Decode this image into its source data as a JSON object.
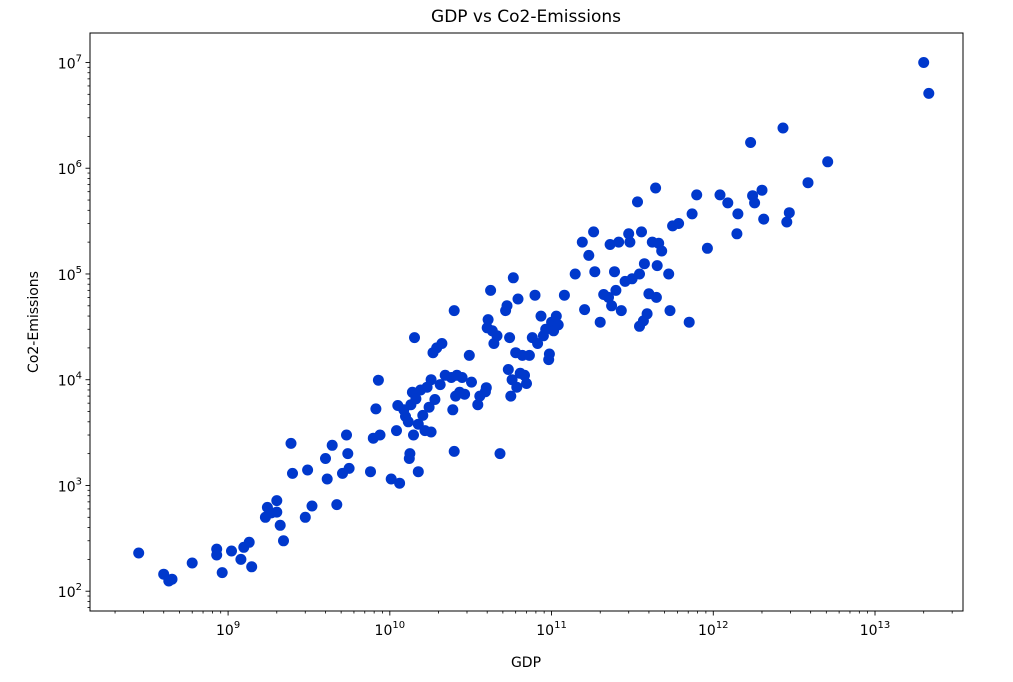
{
  "chart_data": {
    "type": "scatter",
    "title": "GDP vs Co2-Emissions",
    "xlabel": "GDP",
    "ylabel": "Co2-Emissions",
    "x_scale": "log",
    "y_scale": "log",
    "xlim": [
      140000000.0,
      35000000000000.0
    ],
    "ylim": [
      65,
      19000000.0
    ],
    "grid": false,
    "point_color": "#0038cc",
    "x_ticks": [
      {
        "value": 1000000000.0,
        "base": "10",
        "exp": "9"
      },
      {
        "value": 10000000000.0,
        "base": "10",
        "exp": "10"
      },
      {
        "value": 100000000000.0,
        "base": "10",
        "exp": "11"
      },
      {
        "value": 1000000000000.0,
        "base": "10",
        "exp": "12"
      },
      {
        "value": 10000000000000.0,
        "base": "10",
        "exp": "13"
      }
    ],
    "y_ticks": [
      {
        "value": 100.0,
        "base": "10",
        "exp": "2"
      },
      {
        "value": 1000.0,
        "base": "10",
        "exp": "3"
      },
      {
        "value": 10000.0,
        "base": "10",
        "exp": "4"
      },
      {
        "value": 100000.0,
        "base": "10",
        "exp": "5"
      },
      {
        "value": 1000000.0,
        "base": "10",
        "exp": "6"
      },
      {
        "value": 10000000.0,
        "base": "10",
        "exp": "7"
      }
    ],
    "points": [
      [
        280000000.0,
        230
      ],
      [
        400000000.0,
        145
      ],
      [
        430000000.0,
        125
      ],
      [
        450000000.0,
        130
      ],
      [
        600000000.0,
        185
      ],
      [
        850000000.0,
        250
      ],
      [
        850000000.0,
        220
      ],
      [
        920000000.0,
        150
      ],
      [
        1050000000.0,
        240
      ],
      [
        1200000000.0,
        200
      ],
      [
        1250000000.0,
        260
      ],
      [
        1350000000.0,
        290
      ],
      [
        1400000000.0,
        170
      ],
      [
        1700000000.0,
        500
      ],
      [
        1750000000.0,
        620
      ],
      [
        1850000000.0,
        550
      ],
      [
        2000000000.0,
        560
      ],
      [
        2000000000.0,
        720
      ],
      [
        2100000000.0,
        420
      ],
      [
        2200000000.0,
        300
      ],
      [
        2450000000.0,
        2500
      ],
      [
        2500000000.0,
        1300
      ],
      [
        3000000000.0,
        500
      ],
      [
        3100000000.0,
        1400
      ],
      [
        3300000000.0,
        640
      ],
      [
        4000000000.0,
        1800
      ],
      [
        4100000000.0,
        1150
      ],
      [
        4400000000.0,
        2400
      ],
      [
        4700000000.0,
        660
      ],
      [
        5100000000.0,
        1300
      ],
      [
        5400000000.0,
        3000
      ],
      [
        5500000000.0,
        2000
      ],
      [
        5600000000.0,
        1450
      ],
      [
        7600000000.0,
        1350
      ],
      [
        7900000000.0,
        2800
      ],
      [
        8200000000.0,
        5300
      ],
      [
        8500000000.0,
        9900
      ],
      [
        8700000000.0,
        3000
      ],
      [
        10200000000.0,
        1150
      ],
      [
        11000000000.0,
        3300
      ],
      [
        11200000000.0,
        5700
      ],
      [
        11500000000.0,
        1050
      ],
      [
        12200000000.0,
        5200
      ],
      [
        12500000000.0,
        4500
      ],
      [
        13000000000.0,
        4000
      ],
      [
        13200000000.0,
        1800
      ],
      [
        13300000000.0,
        2000
      ],
      [
        13500000000.0,
        5800
      ],
      [
        13800000000.0,
        7600
      ],
      [
        14000000000.0,
        3000
      ],
      [
        14200000000.0,
        25000
      ],
      [
        14500000000.0,
        6600
      ],
      [
        15000000000.0,
        3800
      ],
      [
        15000000000.0,
        1350
      ],
      [
        15500000000.0,
        8000
      ],
      [
        16000000000.0,
        4600
      ],
      [
        16500000000.0,
        3300
      ],
      [
        17000000000.0,
        8500
      ],
      [
        17500000000.0,
        5500
      ],
      [
        18000000000.0,
        3200
      ],
      [
        18000000000.0,
        10000
      ],
      [
        18500000000.0,
        18000
      ],
      [
        19000000000.0,
        6500
      ],
      [
        19500000000.0,
        20000
      ],
      [
        20500000000.0,
        9000
      ],
      [
        21000000000.0,
        22000
      ],
      [
        22000000000.0,
        11000
      ],
      [
        24000000000.0,
        10500
      ],
      [
        24500000000.0,
        5200
      ],
      [
        25000000000.0,
        45000
      ],
      [
        25000000000.0,
        2100
      ],
      [
        25500000000.0,
        7000
      ],
      [
        26000000000.0,
        11000
      ],
      [
        27000000000.0,
        7600
      ],
      [
        28000000000.0,
        10500
      ],
      [
        29000000000.0,
        7300
      ],
      [
        31000000000.0,
        17000
      ],
      [
        32000000000.0,
        9500
      ],
      [
        35000000000.0,
        5800
      ],
      [
        36000000000.0,
        7000
      ],
      [
        39000000000.0,
        7700
      ],
      [
        39500000000.0,
        8400
      ],
      [
        40000000000.0,
        31000
      ],
      [
        40500000000.0,
        37000
      ],
      [
        42000000000.0,
        70000
      ],
      [
        43000000000.0,
        29000
      ],
      [
        44000000000.0,
        22000
      ],
      [
        46000000000.0,
        26000
      ],
      [
        48000000000.0,
        2000
      ],
      [
        52000000000.0,
        45000
      ],
      [
        53000000000.0,
        50000
      ],
      [
        54000000000.0,
        12500
      ],
      [
        55000000000.0,
        25000
      ],
      [
        56000000000.0,
        7000
      ],
      [
        57000000000.0,
        10000
      ],
      [
        58000000000.0,
        92000
      ],
      [
        60000000000.0,
        18000
      ],
      [
        61000000000.0,
        8500
      ],
      [
        62000000000.0,
        58000
      ],
      [
        64000000000.0,
        11500
      ],
      [
        66000000000.0,
        17000
      ],
      [
        68000000000.0,
        11000
      ],
      [
        70000000000.0,
        9200
      ],
      [
        73000000000.0,
        17000
      ],
      [
        76000000000.0,
        25000
      ],
      [
        79000000000.0,
        63000
      ],
      [
        82000000000.0,
        22000
      ],
      [
        86000000000.0,
        40000
      ],
      [
        89000000000.0,
        26000
      ],
      [
        92000000000.0,
        30000
      ],
      [
        96000000000.0,
        15500
      ],
      [
        97000000000.0,
        17500
      ],
      [
        100000000000.0,
        35000
      ],
      [
        103000000000.0,
        29000
      ],
      [
        107000000000.0,
        40000
      ],
      [
        110000000000.0,
        33000
      ],
      [
        120000000000.0,
        63000
      ],
      [
        140000000000.0,
        100000
      ],
      [
        155000000000.0,
        200000
      ],
      [
        160000000000.0,
        46000
      ],
      [
        170000000000.0,
        150000
      ],
      [
        182000000000.0,
        250000
      ],
      [
        185000000000.0,
        105000
      ],
      [
        200000000000.0,
        35000
      ],
      [
        210000000000.0,
        64000
      ],
      [
        225000000000.0,
        60000
      ],
      [
        230000000000.0,
        190000
      ],
      [
        235000000000.0,
        50000
      ],
      [
        245000000000.0,
        105000
      ],
      [
        250000000000.0,
        70000
      ],
      [
        260000000000.0,
        200000
      ],
      [
        270000000000.0,
        45000
      ],
      [
        285000000000.0,
        85000
      ],
      [
        300000000000.0,
        240000
      ],
      [
        305000000000.0,
        200000
      ],
      [
        315000000000.0,
        90000
      ],
      [
        340000000000.0,
        480000
      ],
      [
        350000000000.0,
        100000
      ],
      [
        350000000000.0,
        32000
      ],
      [
        360000000000.0,
        250000
      ],
      [
        370000000000.0,
        36000
      ],
      [
        375000000000.0,
        125000
      ],
      [
        390000000000.0,
        42000
      ],
      [
        400000000000.0,
        65000
      ],
      [
        420000000000.0,
        200000
      ],
      [
        440000000000.0,
        650000
      ],
      [
        445000000000.0,
        60000
      ],
      [
        450000000000.0,
        120000
      ],
      [
        460000000000.0,
        195000
      ],
      [
        480000000000.0,
        165000
      ],
      [
        530000000000.0,
        100000
      ],
      [
        540000000000.0,
        45000
      ],
      [
        560000000000.0,
        285000
      ],
      [
        610000000000.0,
        300000
      ],
      [
        710000000000.0,
        35000
      ],
      [
        740000000000.0,
        370000
      ],
      [
        790000000000.0,
        560000
      ],
      [
        920000000000.0,
        175000
      ],
      [
        1100000000000.0,
        560000
      ],
      [
        1230000000000.0,
        470000
      ],
      [
        1400000000000.0,
        240000
      ],
      [
        1420000000000.0,
        370000
      ],
      [
        1700000000000.0,
        1750000
      ],
      [
        1750000000000.0,
        550000
      ],
      [
        1800000000000.0,
        470000
      ],
      [
        2000000000000.0,
        620000
      ],
      [
        2050000000000.0,
        330000
      ],
      [
        2700000000000.0,
        2400000
      ],
      [
        2850000000000.0,
        310000
      ],
      [
        2950000000000.0,
        380000
      ],
      [
        3850000000000.0,
        730000
      ],
      [
        5100000000000.0,
        1150000
      ],
      [
        20000000000000.0,
        10000000
      ],
      [
        21500000000000.0,
        5100000
      ]
    ]
  }
}
